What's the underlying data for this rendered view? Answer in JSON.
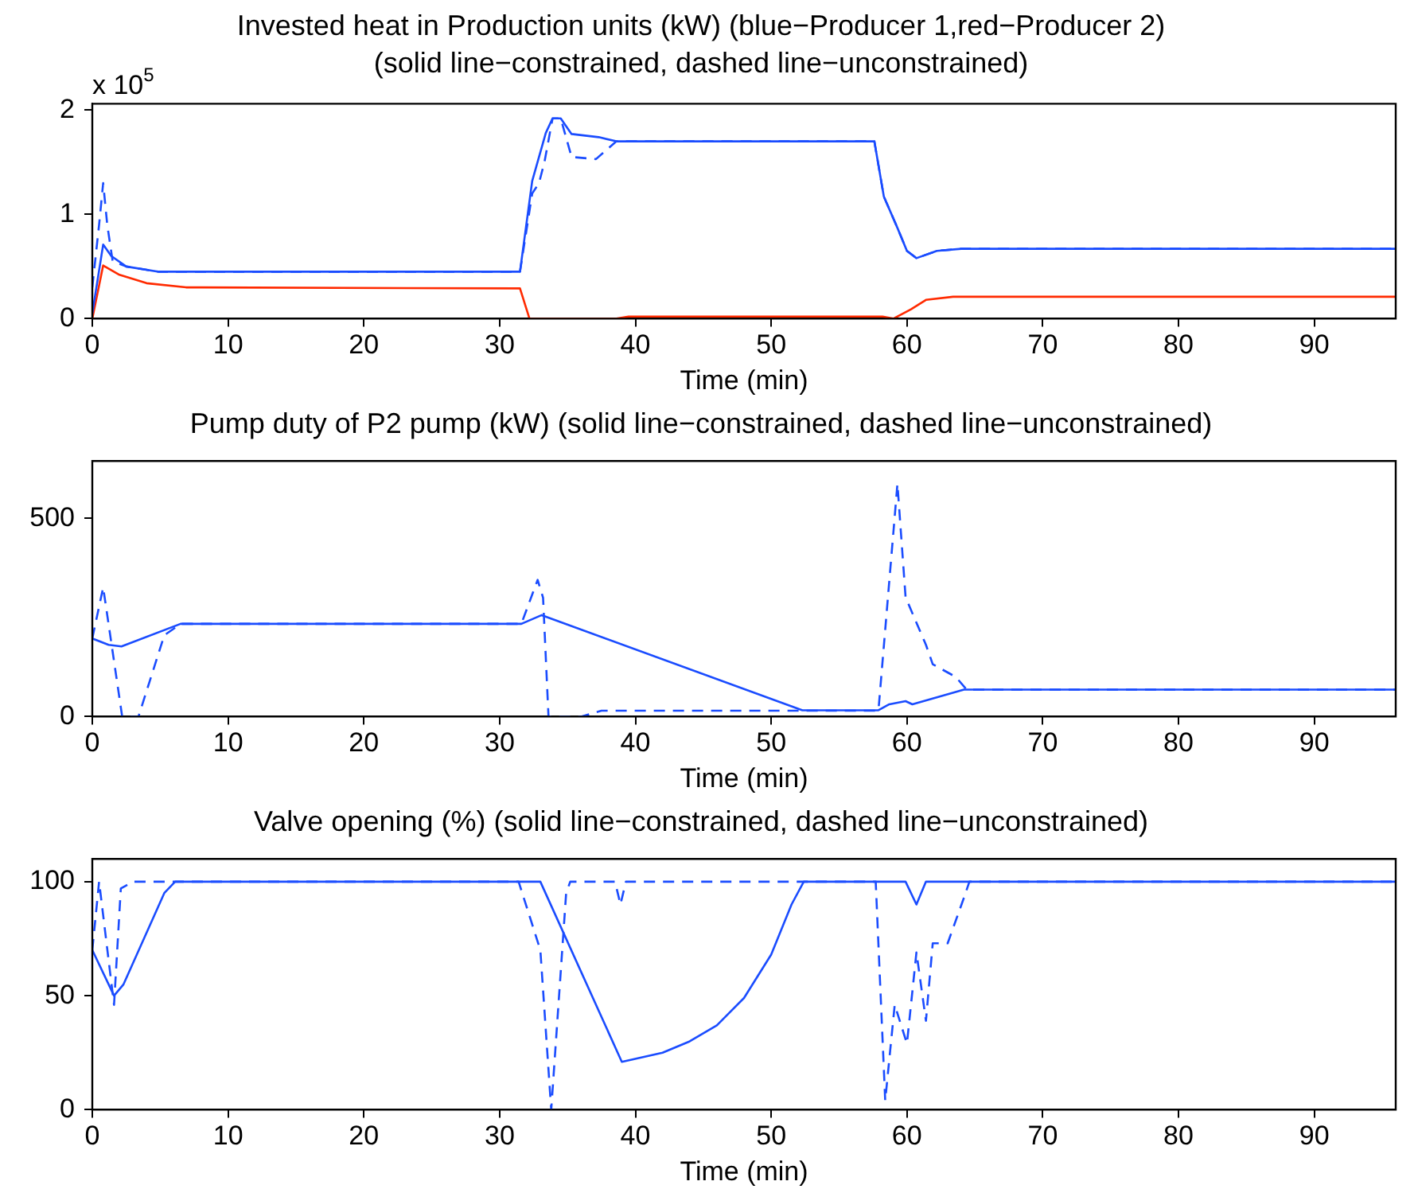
{
  "chart_data": [
    {
      "type": "line",
      "title": "Invested heat in Production units (kW) (blue−Producer 1,red−Producer 2)",
      "subtitle": "(solid line−constrained, dashed line−unconstrained)",
      "xlabel": "Time (min)",
      "annotations": [
        "x 10$^{5}$"
      ],
      "xlim": [
        0,
        96
      ],
      "xticks": [
        0,
        10,
        20,
        30,
        40,
        50,
        60,
        70,
        80,
        90
      ],
      "ylim": [
        0,
        2.06
      ],
      "yticks": [
        0,
        1,
        2
      ],
      "grid": false,
      "legend": false,
      "series": [
        {
          "color": "#1a4cff",
          "line_style": "dashed",
          "x": [
            0,
            0.5,
            0.8,
            1.1,
            1.5,
            2.5,
            4.9,
            31.5,
            32.4,
            32.9,
            33.3,
            33.9,
            34.5,
            35.3,
            37.1,
            38.6,
            57.6,
            58.3,
            59.3,
            60.0,
            60.7,
            62.2,
            64,
            96
          ],
          "values": [
            0.3,
            0.9,
            1.3,
            0.9,
            0.55,
            0.5,
            0.45,
            0.45,
            1.2,
            1.3,
            1.5,
            1.92,
            1.92,
            1.55,
            1.53,
            1.7,
            1.7,
            1.17,
            0.87,
            0.65,
            0.58,
            0.65,
            0.67,
            0.67
          ]
        },
        {
          "color": "#1a4cff",
          "line_style": "solid",
          "x": [
            0,
            0.8,
            1.4,
            2.5,
            4.9,
            31.5,
            32.4,
            33.4,
            33.9,
            34.5,
            35.3,
            37.3,
            38.6,
            57.6,
            58.3,
            59.3,
            60.0,
            60.7,
            62.2,
            64,
            96
          ],
          "values": [
            0.05,
            0.71,
            0.6,
            0.5,
            0.45,
            0.45,
            1.32,
            1.78,
            1.92,
            1.92,
            1.77,
            1.74,
            1.7,
            1.7,
            1.17,
            0.87,
            0.65,
            0.58,
            0.65,
            0.67,
            0.67
          ]
        },
        {
          "color": "#ff2a00",
          "line_style": "solid",
          "x": [
            0,
            0.8,
            2,
            4,
            6.9,
            31.5,
            32.2,
            38.6,
            39.5,
            58.2,
            59.0,
            60.3,
            61.4,
            63.4,
            96
          ],
          "values": [
            0,
            0.51,
            0.42,
            0.34,
            0.3,
            0.29,
            0,
            0,
            0.02,
            0.02,
            0,
            0.09,
            0.18,
            0.21,
            0.21
          ]
        }
      ]
    },
    {
      "type": "line",
      "title": "Pump duty of P2 pump (kW) (solid line−constrained, dashed line−unconstrained)",
      "xlabel": "Time (min)",
      "xlim": [
        0,
        96
      ],
      "xticks": [
        0,
        10,
        20,
        30,
        40,
        50,
        60,
        70,
        80,
        90
      ],
      "ylim": [
        0,
        645
      ],
      "yticks": [
        0,
        500
      ],
      "grid": false,
      "legend": false,
      "series": [
        {
          "color": "#1a4cff",
          "line_style": "dashed",
          "x": [
            0,
            0.8,
            2.2,
            3.4,
            5.3,
            6.5,
            31.6,
            32.8,
            33.2,
            33.6,
            36,
            37.5,
            57.9,
            59.3,
            59.9,
            60.4,
            61.4,
            61.9,
            63.6,
            64.4,
            96
          ],
          "values": [
            197,
            326,
            0,
            0,
            205,
            234,
            234,
            345,
            300,
            0,
            0,
            15,
            15,
            587,
            301,
            261,
            181,
            132,
            100,
            68,
            68
          ]
        },
        {
          "color": "#1a4cff",
          "line_style": "solid",
          "x": [
            0,
            1.2,
            2.15,
            6.5,
            31.6,
            33.1,
            52.3,
            57.9,
            58.7,
            59.9,
            60.4,
            64.2,
            96
          ],
          "values": [
            197,
            181,
            177,
            234,
            234,
            256,
            16,
            16,
            31,
            39,
            31,
            68,
            68
          ]
        }
      ]
    },
    {
      "type": "line",
      "title": "Valve opening (%) (solid line−constrained, dashed line−unconstrained)",
      "xlabel": "Time (min)",
      "xlim": [
        0,
        96
      ],
      "xticks": [
        0,
        10,
        20,
        30,
        40,
        50,
        60,
        70,
        80,
        90
      ],
      "ylim": [
        0,
        110
      ],
      "yticks": [
        0,
        50,
        100
      ],
      "grid": false,
      "legend": false,
      "series": [
        {
          "color": "#1a4cff",
          "line_style": "dashed",
          "x": [
            0,
            0.5,
            1.6,
            2.1,
            3,
            31.4,
            33,
            33.8,
            34.9,
            35.2,
            38.5,
            38.9,
            39.3,
            57.7,
            58.4,
            59.1,
            60.0,
            60.7,
            61.4,
            61.9,
            63.0,
            64.2,
            64.6,
            96
          ],
          "values": [
            70,
            100,
            46,
            97,
            100,
            100,
            70,
            0,
            95,
            100,
            100,
            90,
            100,
            100,
            4,
            46,
            29,
            69,
            39,
            73,
            73,
            93,
            100,
            100
          ]
        },
        {
          "color": "#1a4cff",
          "line_style": "solid",
          "x": [
            0,
            1.6,
            2.3,
            5.3,
            6.1,
            33,
            39,
            42,
            44,
            46,
            48,
            50,
            51.5,
            52.4,
            59.9,
            60.7,
            61.4,
            96
          ],
          "values": [
            70,
            50,
            55,
            95,
            100,
            100,
            21,
            25,
            30,
            37,
            49,
            68,
            90,
            100,
            100,
            90,
            100,
            100
          ]
        }
      ]
    }
  ]
}
